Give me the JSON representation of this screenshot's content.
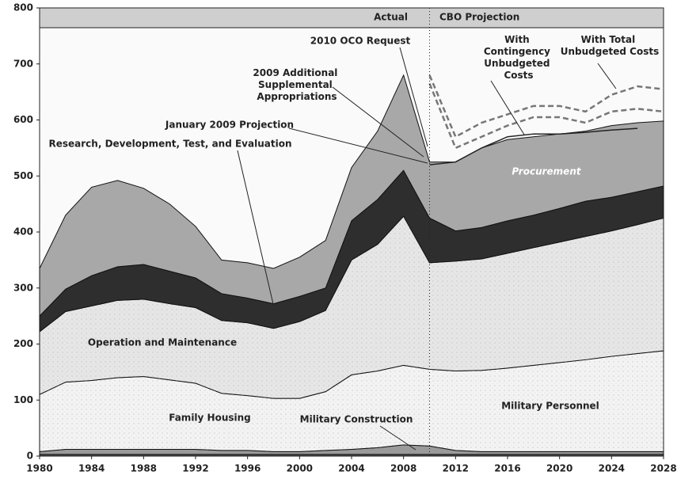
{
  "chart_data": {
    "type": "area",
    "x": [
      1980,
      1982,
      1984,
      1986,
      1988,
      1990,
      1992,
      1994,
      1996,
      1998,
      2000,
      2002,
      2004,
      2006,
      2008,
      2010,
      2012,
      2014,
      2016,
      2018,
      2020,
      2022,
      2024,
      2026,
      2028
    ],
    "xlim": [
      1980,
      2028
    ],
    "xticks": [
      1980,
      1984,
      1988,
      1992,
      1996,
      2000,
      2004,
      2008,
      2012,
      2016,
      2020,
      2024,
      2028
    ],
    "ylim": [
      0,
      800
    ],
    "yticks": [
      0,
      100,
      200,
      300,
      400,
      500,
      600,
      700,
      800
    ],
    "series": [
      {
        "name": "Family Housing",
        "color": "#5a5a5a",
        "values": [
          3,
          3,
          3,
          3,
          3,
          3,
          3,
          3,
          3,
          3,
          3,
          3,
          3,
          3,
          3,
          3,
          3,
          3,
          3,
          3,
          3,
          3,
          3,
          3,
          3
        ]
      },
      {
        "name": "Military Construction",
        "color": "#9a9a9a",
        "values": [
          5,
          9,
          9,
          9,
          9,
          9,
          9,
          7,
          7,
          5,
          5,
          7,
          9,
          12,
          17,
          15,
          7,
          5,
          5,
          5,
          5,
          5,
          5,
          5,
          5
        ]
      },
      {
        "name": "Military Personnel",
        "color": "#f3f3f3",
        "values": [
          102,
          120,
          123,
          128,
          130,
          124,
          118,
          102,
          98,
          95,
          95,
          105,
          133,
          137,
          142,
          137,
          142,
          145,
          149,
          154,
          159,
          164,
          170,
          175,
          180
        ]
      },
      {
        "name": "Operation and Maintenance",
        "color": "#e6e6e6",
        "values": [
          112,
          126,
          133,
          138,
          138,
          136,
          135,
          130,
          130,
          125,
          137,
          145,
          205,
          226,
          266,
          190,
          196,
          199,
          205,
          210,
          215,
          220,
          224,
          230,
          237
        ]
      },
      {
        "name": "Research, Development, Test, and Evaluation",
        "color": "#2e2e2e",
        "values": [
          28,
          40,
          54,
          60,
          62,
          58,
          53,
          48,
          44,
          44,
          45,
          40,
          70,
          80,
          82,
          80,
          54,
          56,
          58,
          58,
          60,
          63,
          60,
          59,
          57
        ]
      },
      {
        "name": "Procurement",
        "color": "#a8a8a8",
        "values": [
          85,
          132,
          158,
          154,
          136,
          120,
          92,
          60,
          63,
          63,
          70,
          85,
          95,
          122,
          170,
          100,
          123,
          142,
          145,
          140,
          133,
          125,
          128,
          123,
          116
        ]
      }
    ],
    "overlay_series": [
      {
        "name": "With Contingency Unbudgeted Costs",
        "color": "#777777",
        "style": "dashed",
        "values": [
          null,
          null,
          null,
          null,
          null,
          null,
          null,
          null,
          null,
          null,
          null,
          null,
          null,
          null,
          null,
          665,
          550,
          570,
          590,
          605,
          605,
          595,
          615,
          620,
          615
        ]
      },
      {
        "name": "With Total Unbudgeted Costs",
        "color": "#777777",
        "style": "dashed",
        "values": [
          null,
          null,
          null,
          null,
          null,
          null,
          null,
          null,
          null,
          null,
          null,
          null,
          null,
          null,
          null,
          680,
          570,
          595,
          610,
          625,
          625,
          615,
          645,
          660,
          655
        ]
      },
      {
        "name": "January 2009 Projection",
        "color": "#222222",
        "style": "solid",
        "values": [
          null,
          null,
          null,
          null,
          null,
          null,
          null,
          null,
          null,
          null,
          null,
          null,
          null,
          null,
          null,
          520,
          525,
          550,
          570,
          575,
          575,
          578,
          582,
          585,
          null
        ]
      }
    ],
    "annotations": [
      "Actual",
      "CBO Projection",
      "2010 OCO Request",
      "2009 Additional Supplemental Appropriations"
    ]
  }
}
